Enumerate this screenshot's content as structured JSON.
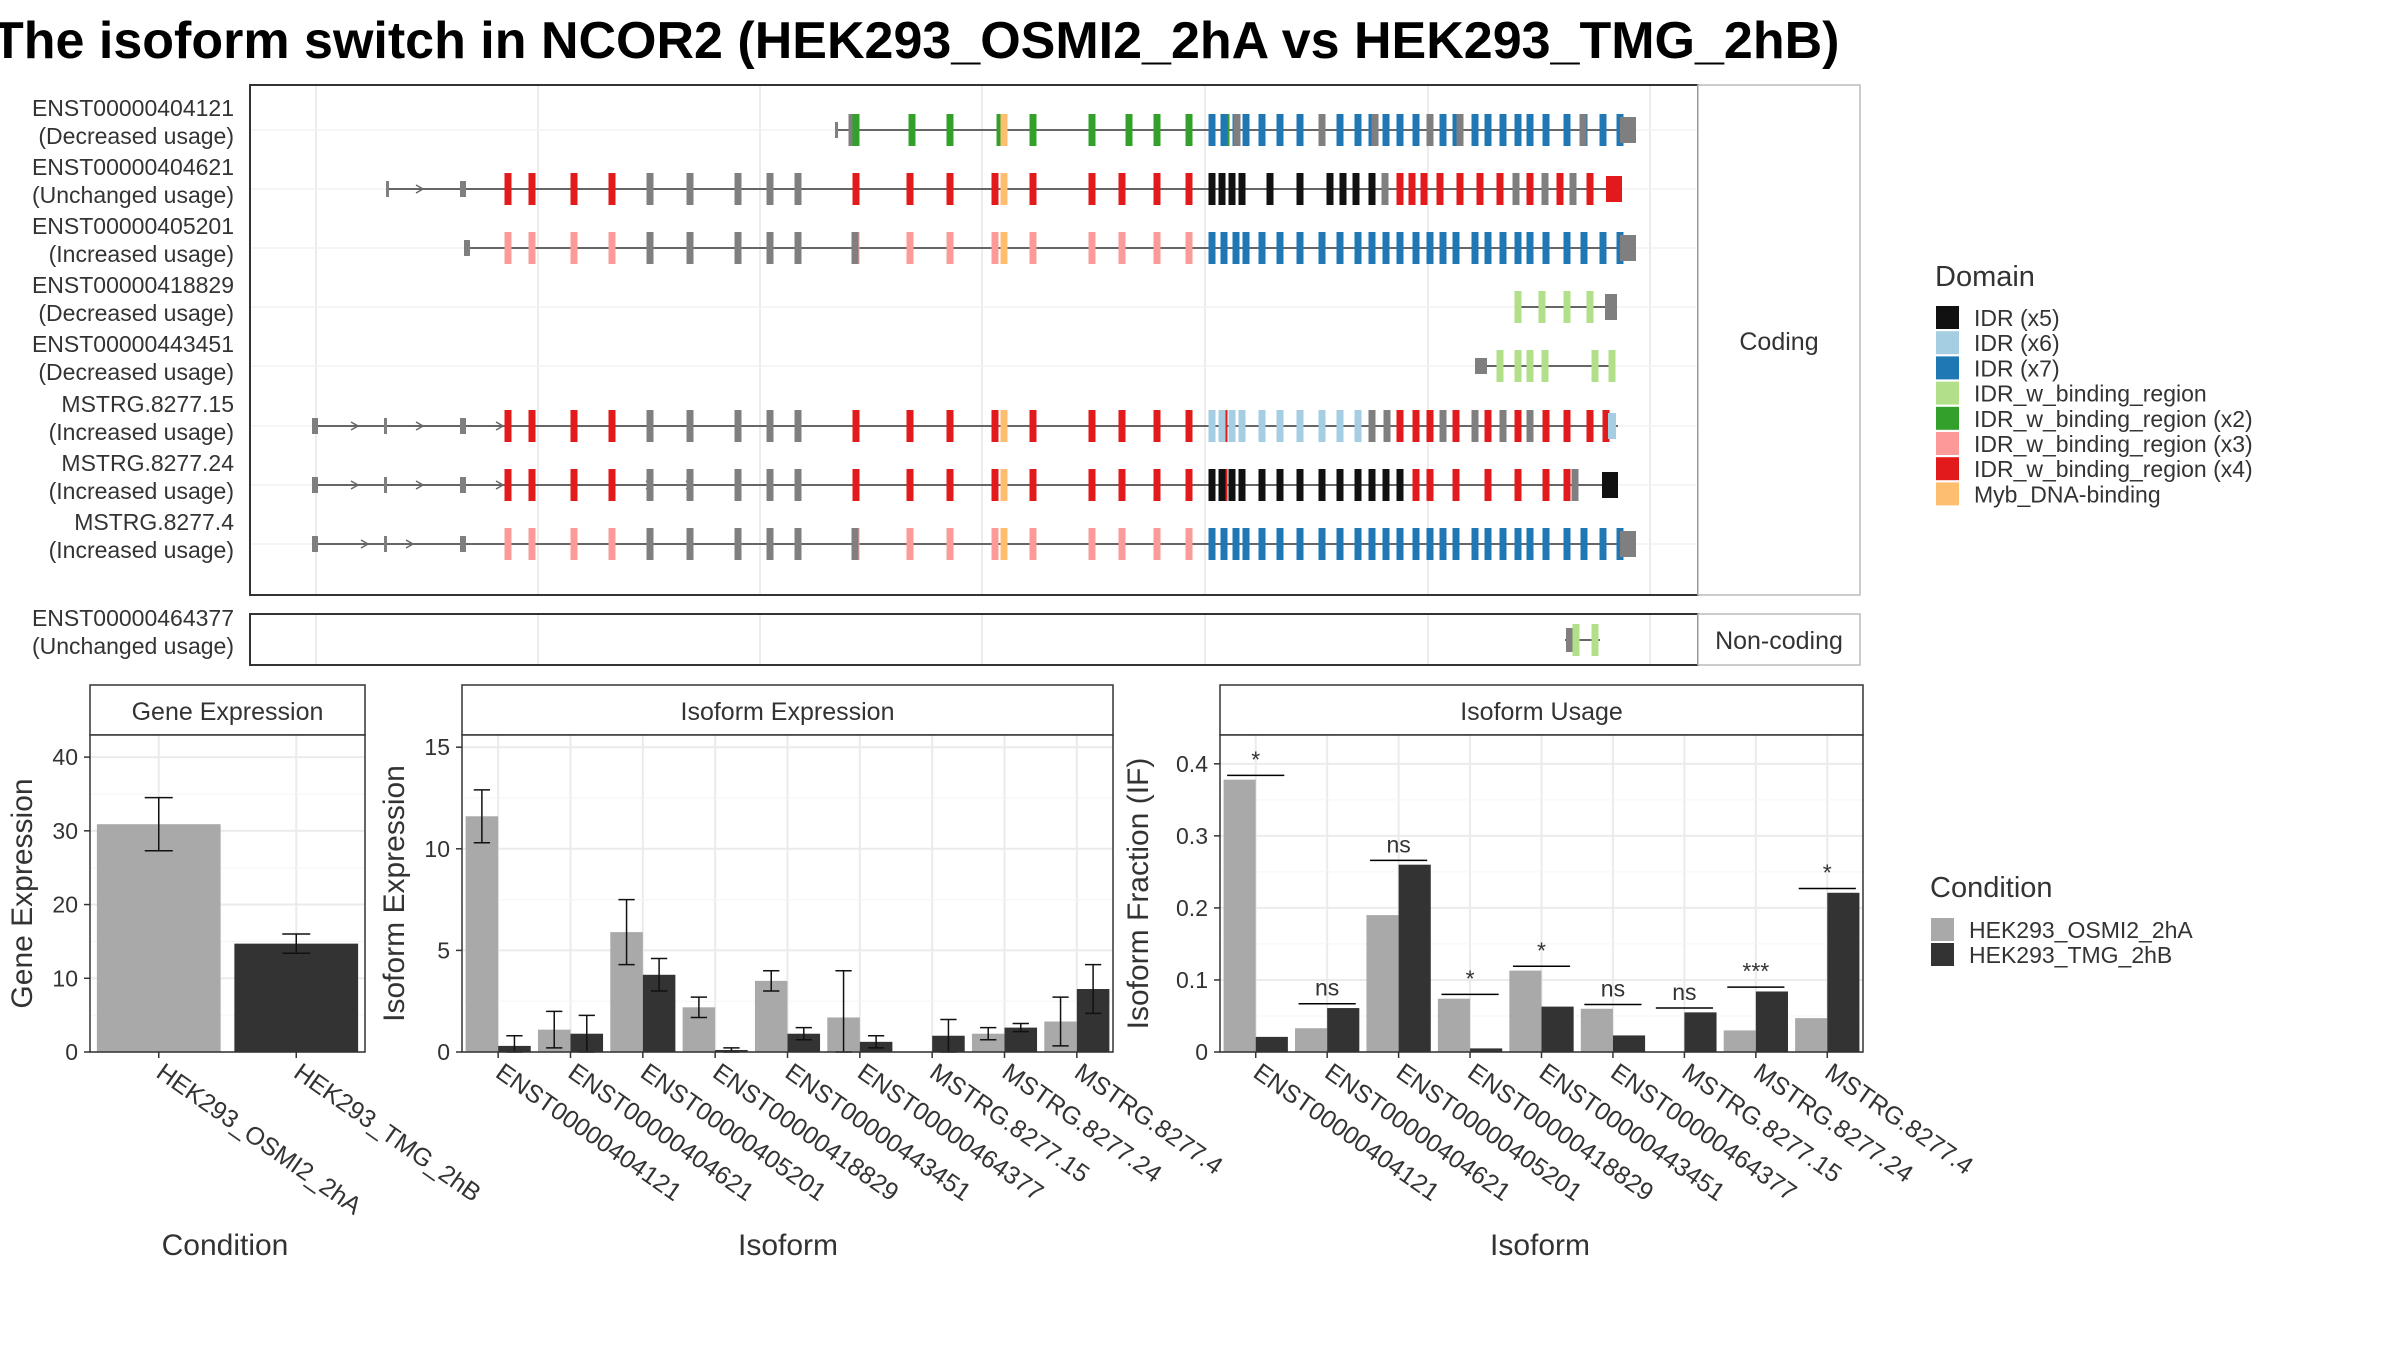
{
  "title": "The isoform switch in NCOR2 (HEK293_OSMI2_2hA vs HEK293_TMG_2hB)",
  "colors": {
    "idr_x5": "#111111",
    "idr_x6": "#a6cee3",
    "idr_x7": "#1f78b4",
    "idr_binding": "#b2df8a",
    "idr_binding_x2": "#33a02c",
    "idr_binding_x3": "#fb9a99",
    "idr_binding_x4": "#e31a1c",
    "myb": "#fdbf6f",
    "untranslated": "#7f7f7f",
    "cond_a": "#a9a9a9",
    "cond_b": "#333333"
  },
  "structure": {
    "facet_coding": "Coding",
    "facet_noncoding": "Non-coding",
    "coding_isoforms": [
      {
        "id": "ENST00000404121",
        "usage": "(Decreased usage)"
      },
      {
        "id": "ENST00000404621",
        "usage": "(Unchanged usage)"
      },
      {
        "id": "ENST00000405201",
        "usage": "(Increased usage)"
      },
      {
        "id": "ENST00000418829",
        "usage": "(Decreased usage)"
      },
      {
        "id": "ENST00000443451",
        "usage": "(Decreased usage)"
      },
      {
        "id": "MSTRG.8277.15",
        "usage": "(Increased usage)"
      },
      {
        "id": "MSTRG.8277.24",
        "usage": "(Increased usage)"
      },
      {
        "id": "MSTRG.8277.4",
        "usage": "(Increased usage)"
      }
    ],
    "noncoding_isoforms": [
      {
        "id": "ENST00000464377",
        "usage": "(Unchanged usage)"
      }
    ]
  },
  "domain_legend": {
    "title": "Domain",
    "items": [
      {
        "label": "IDR (x5)",
        "color_key": "idr_x5"
      },
      {
        "label": "IDR (x6)",
        "color_key": "idr_x6"
      },
      {
        "label": "IDR (x7)",
        "color_key": "idr_x7"
      },
      {
        "label": "IDR_w_binding_region",
        "color_key": "idr_binding"
      },
      {
        "label": "IDR_w_binding_region (x2)",
        "color_key": "idr_binding_x2"
      },
      {
        "label": "IDR_w_binding_region (x3)",
        "color_key": "idr_binding_x3"
      },
      {
        "label": "IDR_w_binding_region (x4)",
        "color_key": "idr_binding_x4"
      },
      {
        "label": "Myb_DNA-binding",
        "color_key": "myb"
      }
    ]
  },
  "condition_legend": {
    "title": "Condition",
    "items": [
      {
        "label": "HEK293_OSMI2_2hA",
        "color_key": "cond_a"
      },
      {
        "label": "HEK293_TMG_2hB",
        "color_key": "cond_b"
      }
    ]
  },
  "chart_data": [
    {
      "type": "bar",
      "title": "Gene Expression",
      "xlabel": "Condition",
      "ylabel": "Gene Expression",
      "ylim": [
        0,
        43
      ],
      "yticks": [
        0,
        10,
        20,
        30,
        40
      ],
      "categories": [
        "HEK293_OSMI2_2hA",
        "HEK293_TMG_2hB"
      ],
      "series": [
        {
          "name": "HEK293_OSMI2_2hA",
          "values": [
            30.9,
            null
          ],
          "errors": [
            3.6,
            null
          ]
        },
        {
          "name": "HEK293_TMG_2hB",
          "values": [
            null,
            14.7
          ],
          "errors": [
            null,
            1.3
          ]
        }
      ]
    },
    {
      "type": "bar",
      "title": "Isoform Expression",
      "xlabel": "Isoform",
      "ylabel": "Isoform Expression",
      "ylim": [
        0,
        15.6
      ],
      "yticks": [
        0,
        5,
        10,
        15
      ],
      "categories": [
        "ENST00000404121",
        "ENST00000404621",
        "ENST00000405201",
        "ENST00000418829",
        "ENST00000443451",
        "ENST00000464377",
        "MSTRG.8277.15",
        "MSTRG.8277.24",
        "MSTRG.8277.4"
      ],
      "series": [
        {
          "name": "HEK293_OSMI2_2hA",
          "values": [
            11.6,
            1.1,
            5.9,
            2.2,
            3.5,
            1.7,
            0.0,
            0.9,
            1.5
          ],
          "errors": [
            1.3,
            0.9,
            1.6,
            0.5,
            0.5,
            2.3,
            0.0,
            0.3,
            1.2
          ]
        },
        {
          "name": "HEK293_TMG_2hB",
          "values": [
            0.3,
            0.9,
            3.8,
            0.1,
            0.9,
            0.5,
            0.8,
            1.2,
            3.1
          ],
          "errors": [
            0.5,
            0.9,
            0.8,
            0.1,
            0.3,
            0.3,
            0.8,
            0.2,
            1.2
          ]
        }
      ]
    },
    {
      "type": "bar",
      "title": "Isoform Usage",
      "xlabel": "Isoform",
      "ylabel": "Isoform Fraction (IF)",
      "ylim": [
        0,
        0.44
      ],
      "yticks": [
        0.0,
        0.1,
        0.2,
        0.3,
        0.4
      ],
      "categories": [
        "ENST00000404121",
        "ENST00000404621",
        "ENST00000405201",
        "ENST00000418829",
        "ENST00000443451",
        "ENST00000464377",
        "MSTRG.8277.15",
        "MSTRG.8277.24",
        "MSTRG.8277.4"
      ],
      "series": [
        {
          "name": "HEK293_OSMI2_2hA",
          "values": [
            0.378,
            0.033,
            0.19,
            0.074,
            0.113,
            0.06,
            0.0,
            0.03,
            0.047
          ]
        },
        {
          "name": "HEK293_TMG_2hB",
          "values": [
            0.021,
            0.061,
            0.26,
            0.005,
            0.063,
            0.023,
            0.055,
            0.084,
            0.221
          ]
        }
      ],
      "significance": [
        "*",
        "ns",
        "ns",
        "*",
        "*",
        "ns",
        "ns",
        "***",
        "*"
      ]
    }
  ]
}
